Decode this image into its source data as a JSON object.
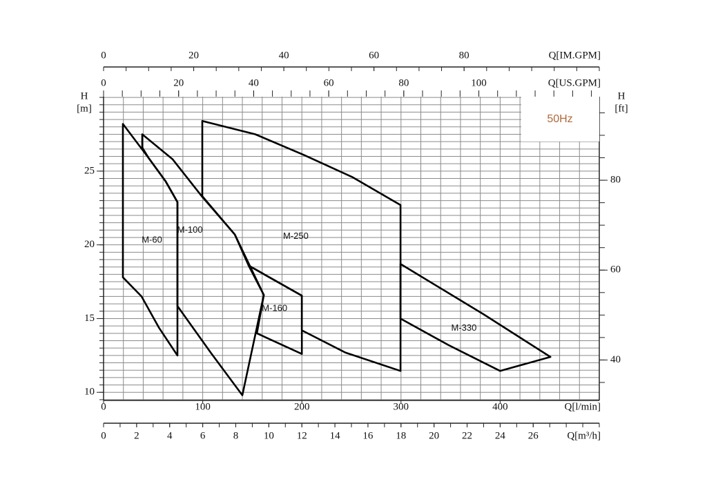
{
  "chart_data": {
    "type": "region",
    "note": "50Hz",
    "xlabel": "Q[l/min]",
    "xlim": [
      0,
      500
    ],
    "xticks": [
      0,
      100,
      200,
      300,
      400
    ],
    "x_minor_step": 20,
    "ylabel": [
      "H",
      "[m]"
    ],
    "ylim": [
      9.45,
      30.05
    ],
    "yticks": [
      10,
      15,
      20,
      25
    ],
    "y_minor_step": 0.5,
    "y2label": [
      "H",
      "[ft]"
    ],
    "y2lim": [
      31.0,
      98.6
    ],
    "y2ticks": [
      40,
      60,
      80
    ],
    "y2_minor_step": 5,
    "grid": true,
    "secondary_x_axes": [
      {
        "label": "Q[IM.GPM]",
        "xlim": [
          0,
          110
        ],
        "xticks": [
          0,
          20,
          40,
          60,
          80
        ],
        "minor_step": 5,
        "position": "top"
      },
      {
        "label": "Q[US.GPM]",
        "xlim": [
          0,
          132.1
        ],
        "xticks": [
          0,
          20,
          40,
          60,
          80,
          100
        ],
        "minor_step": 5,
        "position": "top"
      },
      {
        "label": "Q[m³/h]",
        "xlim": [
          0,
          30
        ],
        "xticks": [
          0,
          2,
          4,
          6,
          8,
          10,
          12,
          14,
          16,
          18,
          20,
          22,
          24,
          26
        ],
        "minor_step": 1,
        "position": "bottom"
      }
    ],
    "series": [
      {
        "name": "M-60",
        "color": "#000000",
        "x": [
          19.5,
          45.3,
          62.7,
          74.5,
          74.5,
          55.7,
          38.3,
          19.5
        ],
        "y": [
          28.2,
          25.9,
          24.3,
          22.9,
          12.5,
          14.4,
          16.5,
          17.8
        ]
      },
      {
        "name": "M-100",
        "color": "#000000",
        "x": [
          39,
          69.7,
          99.6,
          132.4,
          161.6,
          140,
          108,
          74.5,
          74.5,
          62.7,
          45.3,
          39
        ],
        "y": [
          27.5,
          25.8,
          23.25,
          20.7,
          16.6,
          9.8,
          12.7,
          15.85,
          22.9,
          24.3,
          25.9,
          26.6
        ]
      },
      {
        "name": "M-250",
        "color": "#000000",
        "x": [
          99.6,
          153,
          202,
          250.8,
          299.5,
          299.5,
          243.8,
          200,
          200,
          146.3,
          132.4,
          99.6
        ],
        "y": [
          28.4,
          27.5,
          26.1,
          24.6,
          22.7,
          11.45,
          12.7,
          14.2,
          16.55,
          18.6,
          20.7,
          23.3
        ]
      },
      {
        "name": "M-160",
        "color": "#000000",
        "x": [
          146.3,
          200,
          200,
          154.7,
          161.6
        ],
        "y": [
          18.6,
          16.55,
          12.6,
          14.0,
          16.6
        ]
      },
      {
        "name": "M-330",
        "color": "#000000",
        "x": [
          299.5,
          383,
          450.7,
          400,
          348,
          299.5
        ],
        "y": [
          18.7,
          15.3,
          12.4,
          11.45,
          13.2,
          15.0
        ]
      }
    ]
  }
}
